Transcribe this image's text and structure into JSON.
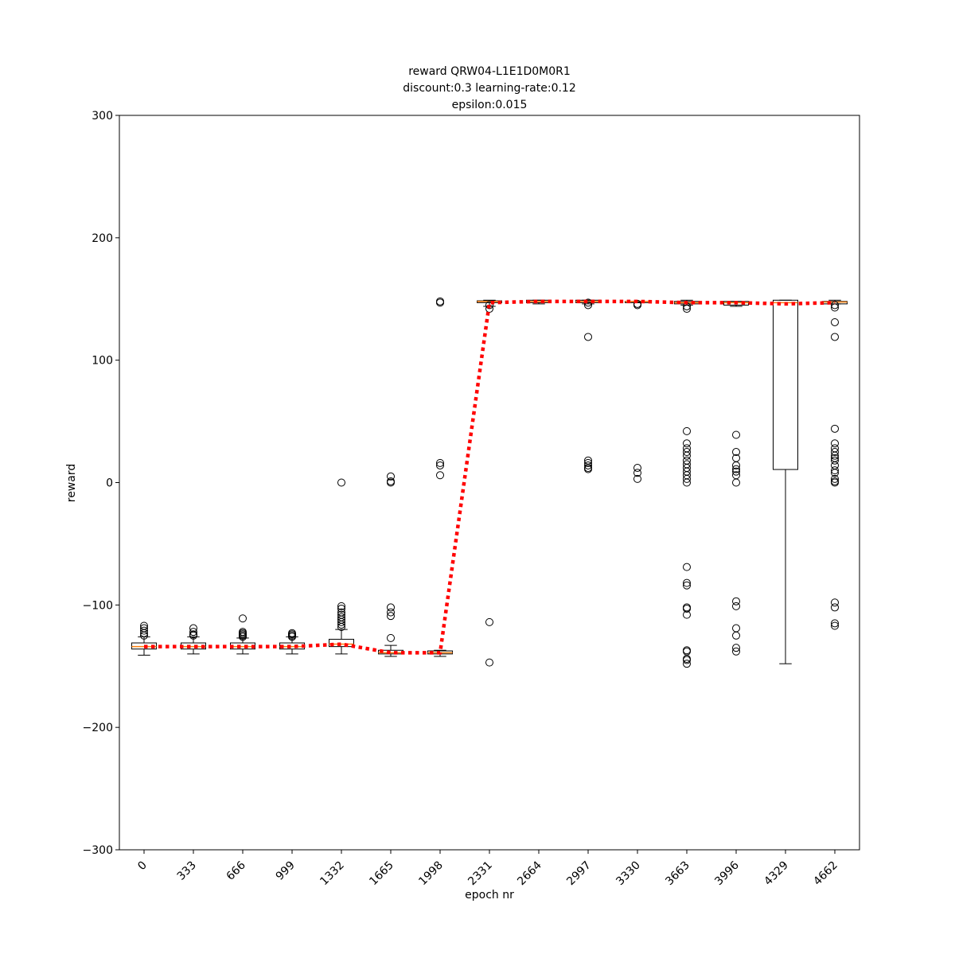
{
  "chart_data": {
    "type": "boxplot",
    "title": [
      "reward QRW04-L1E1D0M0R1",
      "discount:0.3 learning-rate:0.12",
      "epsilon:0.015"
    ],
    "xlabel": "epoch nr",
    "ylabel": "reward",
    "categories": [
      "0",
      "333",
      "666",
      "999",
      "1332",
      "1665",
      "1998",
      "2331",
      "2664",
      "2997",
      "3330",
      "3663",
      "3996",
      "4329",
      "4662"
    ],
    "ylim": [
      -300,
      300
    ],
    "yticks": [
      {
        "value": -300,
        "label": "−300"
      },
      {
        "value": -200,
        "label": "−200"
      },
      {
        "value": -100,
        "label": "−100"
      },
      0,
      100,
      200,
      300
    ],
    "box_color": "#000000",
    "median_color": "#ff7f0e",
    "mean_color": "#ff0000",
    "boxes": [
      {
        "whislo": -141,
        "q1": -136,
        "med": -134,
        "q3": -131,
        "whishi": -126,
        "fliers": [
          -117,
          -119,
          -121,
          -123,
          -125
        ]
      },
      {
        "whislo": -140,
        "q1": -136,
        "med": -134,
        "q3": -131,
        "whishi": -126,
        "fliers": [
          -119,
          -122,
          -124,
          -125
        ]
      },
      {
        "whislo": -140,
        "q1": -136,
        "med": -134,
        "q3": -131,
        "whishi": -127,
        "fliers": [
          -111,
          -122,
          -123,
          -124,
          -125,
          -126
        ]
      },
      {
        "whislo": -140,
        "q1": -136,
        "med": -134,
        "q3": -131,
        "whishi": -126,
        "fliers": [
          -123,
          -124,
          -125,
          -126
        ]
      },
      {
        "whislo": -140,
        "q1": -134,
        "med": -132,
        "q3": -128,
        "whishi": -120,
        "fliers": [
          -101,
          -103,
          -106,
          -108,
          -110,
          -112,
          -114,
          -116,
          -118,
          0
        ]
      },
      {
        "whislo": -142,
        "q1": -140,
        "med": -139,
        "q3": -137,
        "whishi": -133,
        "fliers": [
          -102,
          -106,
          -109,
          -127,
          0,
          1,
          5
        ]
      },
      {
        "whislo": -142,
        "q1": -140,
        "med": -139,
        "q3": -137.5,
        "whishi": -137,
        "fliers": [
          148,
          147,
          16,
          14,
          6
        ]
      },
      {
        "whislo": 144,
        "q1": 147,
        "med": 148,
        "q3": 148.5,
        "whishi": 149,
        "fliers": [
          142,
          145,
          -114,
          -147
        ]
      },
      {
        "whislo": 146,
        "q1": 147,
        "med": 148,
        "q3": 149,
        "whishi": 149,
        "fliers": []
      },
      {
        "whislo": 146,
        "q1": 147,
        "med": 148,
        "q3": 149,
        "whishi": 149,
        "fliers": [
          145,
          147,
          119,
          18,
          16,
          14,
          12,
          11
        ]
      },
      {
        "whislo": 147,
        "q1": 147,
        "med": 148,
        "q3": 148,
        "whishi": 148,
        "fliers": [
          146,
          145,
          12,
          8,
          3
        ]
      },
      {
        "whislo": 145,
        "q1": 146,
        "med": 147,
        "q3": 148,
        "whishi": 149,
        "fliers": [
          142,
          144,
          42,
          32,
          28,
          25,
          22,
          18,
          15,
          12,
          9,
          6,
          3,
          0,
          -69,
          -82,
          -84,
          -102,
          -103,
          -108,
          -137,
          -138,
          -144,
          -145,
          -148
        ]
      },
      {
        "whislo": 144,
        "q1": 145,
        "med": 147,
        "q3": 148,
        "whishi": 148,
        "fliers": [
          39,
          25,
          20,
          14,
          11,
          9,
          6,
          0,
          -97,
          -101,
          -119,
          -125,
          -135,
          -138
        ]
      },
      {
        "whislo": -148,
        "q1": 10.7,
        "med": 147,
        "q3": 149,
        "whishi": 149,
        "fliers": []
      },
      {
        "whislo": 146,
        "q1": 146,
        "med": 147.5,
        "q3": 148,
        "whishi": 149,
        "fliers": [
          145,
          143,
          131,
          119,
          44,
          32,
          28,
          25,
          22,
          20,
          18,
          14,
          10,
          8,
          3,
          1,
          0,
          -98,
          -102,
          -115,
          -117
        ]
      }
    ],
    "means": [
      -134,
      -134,
      -134,
      -134,
      -132,
      -139,
      -139,
      147,
      148,
      148,
      148,
      147,
      147,
      146,
      147
    ]
  }
}
